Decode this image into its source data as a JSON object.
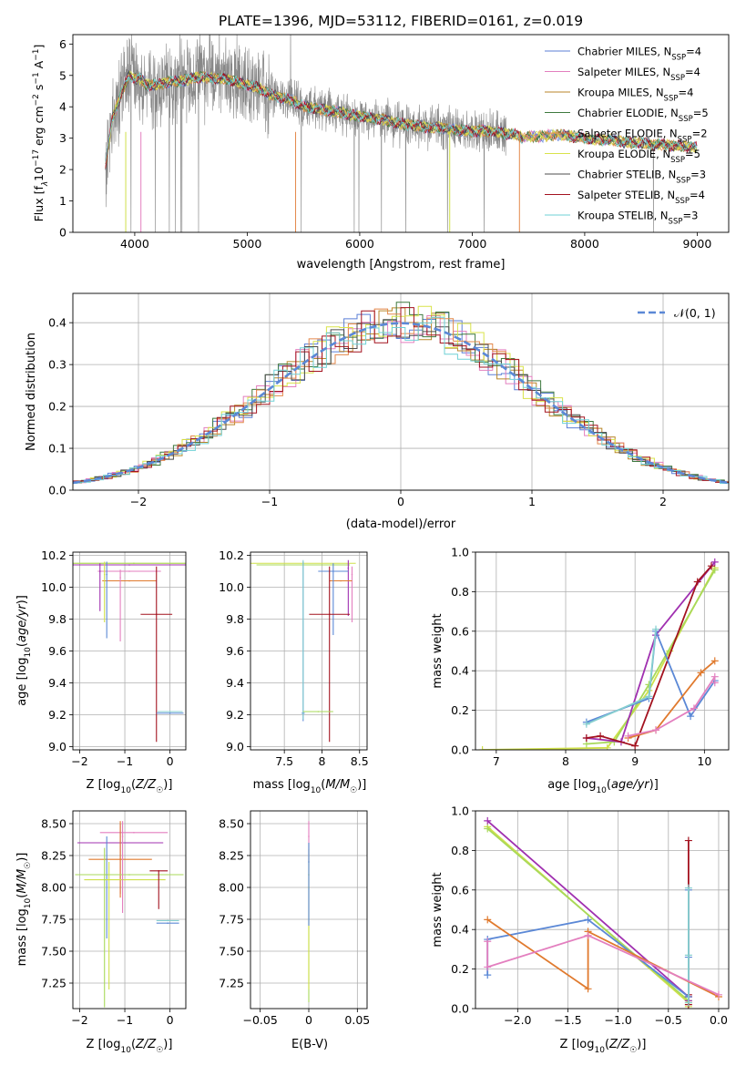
{
  "title": "PLATE=1396, MJD=53112, FIBERID=0161, z=0.019",
  "colors": {
    "series": [
      "#5b7fd6",
      "#e37fbf",
      "#b8862a",
      "#3f7a3f",
      "#e3884b",
      "#d9e34a",
      "#4d4d4d",
      "#a3121f",
      "#6fd1d6"
    ],
    "data": "#888888",
    "blue": "#5b88d6",
    "orange": "#e07a2e",
    "pink": "#e37fbf",
    "green": "#a8d95a",
    "olive": "#cfe04a",
    "purple": "#a030b0",
    "red": "#a3121f",
    "teal": "#86cfcf",
    "grid": "#b0b0b0"
  },
  "chart_data": [
    {
      "id": "spectrum",
      "type": "line",
      "title": "PLATE=1396, MJD=53112, FIBERID=0161, z=0.019",
      "xlabel": "wavelength [Angstrom, rest frame]",
      "ylabel_parts": [
        "Flux [f",
        "λ",
        "10",
        "−17",
        " erg cm",
        "−2",
        " s",
        "−1",
        " A",
        "−1",
        "]"
      ],
      "xlim": [
        3450,
        9280
      ],
      "ylim": [
        0,
        6.3
      ],
      "xticks": [
        4000,
        5000,
        6000,
        7000,
        8000,
        9000
      ],
      "yticks": [
        0,
        1,
        2,
        3,
        4,
        5,
        6
      ],
      "grid": false,
      "legend_position": "upper-right",
      "legend": [
        {
          "label": "Chabrier MILES, N",
          "sub": "SSP",
          "tail": "=4"
        },
        {
          "label": "Salpeter MILES, N",
          "sub": "SSP",
          "tail": "=4"
        },
        {
          "label": "Kroupa MILES, N",
          "sub": "SSP",
          "tail": "=4"
        },
        {
          "label": "Chabrier ELODIE, N",
          "sub": "SSP",
          "tail": "=5"
        },
        {
          "label": "Salpeter ELODIE, N",
          "sub": "SSP",
          "tail": "=2"
        },
        {
          "label": "Kroupa ELODIE, N",
          "sub": "SSP",
          "tail": "=5"
        },
        {
          "label": "Chabrier STELIB, N",
          "sub": "SSP",
          "tail": "=3"
        },
        {
          "label": "Salpeter STELIB, N",
          "sub": "SSP",
          "tail": "=4"
        },
        {
          "label": "Kroupa STELIB, N",
          "sub": "SSP",
          "tail": "=3"
        }
      ],
      "continuum": {
        "x": [
          3740,
          3800,
          3900,
          3950,
          4000,
          4050,
          4100,
          4200,
          4300,
          4400,
          4500,
          4600,
          4700,
          4800,
          4900,
          5000,
          5100,
          5200,
          5300,
          5400,
          5500,
          5600,
          5700,
          5800,
          5900,
          6000,
          6100,
          6200,
          6300,
          6400,
          6500,
          6600,
          6700,
          6800,
          6900,
          7000,
          7100,
          7200,
          7300,
          7400,
          7450,
          7500,
          7600,
          7700,
          7800,
          7900,
          8000,
          8100,
          8200,
          8300,
          8400,
          8500,
          8600,
          8700,
          8800,
          8900,
          9000
        ],
        "y": [
          2.1,
          3.6,
          4.6,
          5.0,
          4.9,
          4.9,
          4.7,
          4.7,
          4.8,
          4.8,
          4.9,
          4.95,
          4.9,
          4.9,
          4.8,
          4.7,
          4.6,
          4.4,
          4.3,
          4.2,
          4.0,
          3.95,
          3.9,
          3.85,
          3.75,
          3.7,
          3.65,
          3.6,
          3.5,
          3.45,
          3.4,
          3.35,
          3.35,
          3.3,
          3.25,
          3.2,
          3.25,
          3.2,
          3.15,
          3.1,
          3.0,
          3.05,
          3.05,
          3.1,
          3.1,
          3.05,
          3.0,
          2.95,
          2.95,
          2.9,
          2.85,
          2.85,
          2.8,
          2.8,
          2.75,
          2.75,
          2.7
        ]
      }
    },
    {
      "id": "residuals",
      "type": "line",
      "xlabel": "(data-model)/error",
      "ylabel": "Normed distribution",
      "xlim": [
        -2.5,
        2.5
      ],
      "ylim": [
        0,
        0.47
      ],
      "xticks": [
        -2,
        -1,
        0,
        1,
        2
      ],
      "yticks": [
        0.0,
        0.1,
        0.2,
        0.3,
        0.4
      ],
      "grid": true,
      "legend_position": "upper-right",
      "series": [
        {
          "name": "N(0,1)",
          "function": "gaussian",
          "mu": 0,
          "sigma": 1
        }
      ],
      "bin_width": 0.1
    },
    {
      "id": "age-vs-Z",
      "type": "scatter",
      "xlabel": "Z [log10(Z/Z☉)]",
      "ylabel": "age [log10(age/yr)]",
      "xlim": [
        -2.15,
        0.35
      ],
      "ylim": [
        8.98,
        10.22
      ],
      "xticks": [
        -2,
        -1,
        0
      ],
      "yticks": [
        9.0,
        9.2,
        9.4,
        9.6,
        9.8,
        10.0,
        10.2
      ],
      "grid": true,
      "points": [
        {
          "x": -0.8,
          "y": 10.15,
          "xerr": 1.45,
          "yerr": [
            0,
            0
          ],
          "c": "olive"
        },
        {
          "x": -0.8,
          "y": 10.15,
          "xerr": 1.35,
          "yerr": [
            0,
            0
          ],
          "c": "green"
        },
        {
          "x": -0.9,
          "y": 10.14,
          "xerr": 1.28,
          "yerr": [
            0,
            0
          ],
          "c": "purple"
        },
        {
          "x": -0.9,
          "y": 10.1,
          "xerr": 0.7,
          "yerr": [
            0,
            0
          ],
          "c": "pink"
        },
        {
          "x": -0.9,
          "y": 10.04,
          "xerr": 0.6,
          "yerr": [
            0,
            0
          ],
          "c": "orange"
        },
        {
          "x": -1.55,
          "y": 10.1,
          "xerr": 0.0,
          "yerr": [
            0.25,
            0.05
          ],
          "c": "purple"
        },
        {
          "x": -1.45,
          "y": 10.08,
          "xerr": 0.0,
          "yerr": [
            0.3,
            0.08
          ],
          "c": "olive"
        },
        {
          "x": -1.4,
          "y": 10.08,
          "xerr": 0.0,
          "yerr": [
            0.4,
            0.08
          ],
          "c": "blue"
        },
        {
          "x": -1.1,
          "y": 10.06,
          "xerr": 0.0,
          "yerr": [
            0.4,
            0.05
          ],
          "c": "pink"
        },
        {
          "x": -0.3,
          "y": 9.83,
          "xerr": 0.35,
          "yerr": [
            0.8,
            0.3
          ],
          "c": "red"
        },
        {
          "x": 0.0,
          "y": 9.21,
          "xerr": 0.3,
          "yerr": [
            0,
            0
          ],
          "c": "blue"
        },
        {
          "x": 0.0,
          "y": 9.22,
          "xerr": 0.28,
          "yerr": [
            0,
            0
          ],
          "c": "teal"
        }
      ]
    },
    {
      "id": "age-vs-mass",
      "type": "scatter",
      "xlabel": "mass [log10(M/M☉)]",
      "ylabel": "",
      "xlim": [
        7.05,
        8.6
      ],
      "ylim": [
        8.98,
        10.22
      ],
      "xticks": [
        7.5,
        8.0,
        8.5
      ],
      "yticks": [
        9.0,
        9.2,
        9.4,
        9.6,
        9.8,
        10.0,
        10.2
      ],
      "grid": true,
      "points": [
        {
          "x": 7.75,
          "y": 10.15,
          "xerr": 0.7,
          "yerr": [
            0,
            0
          ],
          "c": "olive"
        },
        {
          "x": 7.75,
          "y": 10.14,
          "xerr": 0.62,
          "yerr": [
            0,
            0
          ],
          "c": "green"
        },
        {
          "x": 8.35,
          "y": 10.12,
          "xerr": 0.0,
          "yerr": [
            0.3,
            0.05
          ],
          "c": "purple"
        },
        {
          "x": 8.4,
          "y": 10.08,
          "xerr": 0.0,
          "yerr": [
            0.3,
            0.05
          ],
          "c": "pink"
        },
        {
          "x": 8.25,
          "y": 10.04,
          "xerr": 0.15,
          "yerr": [
            0,
            0
          ],
          "c": "orange"
        },
        {
          "x": 8.15,
          "y": 10.1,
          "xerr": 0.2,
          "yerr": [
            0.4,
            0.05
          ],
          "c": "blue"
        },
        {
          "x": 8.1,
          "y": 9.83,
          "xerr": 0.27,
          "yerr": [
            0.8,
            0.3
          ],
          "c": "red"
        },
        {
          "x": 7.75,
          "y": 9.21,
          "xerr": 0.02,
          "yerr": [
            0.05,
            0.95
          ],
          "c": "blue"
        },
        {
          "x": 7.75,
          "y": 9.22,
          "xerr": 0.0,
          "yerr": [
            0.05,
            0.95
          ],
          "c": "teal"
        },
        {
          "x": 7.95,
          "y": 9.22,
          "xerr": 0.2,
          "yerr": [
            0,
            0
          ],
          "c": "green"
        }
      ]
    },
    {
      "id": "massweight-vs-age",
      "type": "line",
      "xlabel": "age [log10(age/yr)]",
      "ylabel": "mass weight",
      "xlim": [
        6.7,
        10.35
      ],
      "ylim": [
        0,
        1.0
      ],
      "xticks": [
        7,
        8,
        9,
        10
      ],
      "yticks": [
        0.0,
        0.2,
        0.4,
        0.6,
        0.8,
        1.0
      ],
      "grid": true,
      "series": [
        {
          "c": "olive",
          "x": [
            6.8,
            8.6,
            9.2,
            9.5,
            10.15
          ],
          "y": [
            0.0,
            0.01,
            0.3,
            0.5,
            0.92
          ]
        },
        {
          "c": "green",
          "x": [
            8.3,
            8.7,
            9.2,
            10.15
          ],
          "y": [
            0.03,
            0.04,
            0.33,
            0.91
          ]
        },
        {
          "c": "purple",
          "x": [
            8.3,
            8.8,
            9.3,
            10.15
          ],
          "y": [
            0.06,
            0.04,
            0.58,
            0.95
          ]
        },
        {
          "c": "red",
          "x": [
            8.3,
            8.5,
            9.0,
            9.9,
            10.1
          ],
          "y": [
            0.06,
            0.07,
            0.02,
            0.85,
            0.93
          ]
        },
        {
          "c": "blue",
          "x": [
            8.3,
            9.2,
            9.3,
            9.8,
            10.15
          ],
          "y": [
            0.14,
            0.26,
            0.6,
            0.17,
            0.35
          ]
        },
        {
          "c": "teal",
          "x": [
            8.3,
            9.2,
            9.3
          ],
          "y": [
            0.13,
            0.27,
            0.61
          ]
        },
        {
          "c": "orange",
          "x": [
            8.9,
            9.3,
            9.95,
            10.15
          ],
          "y": [
            0.06,
            0.1,
            0.39,
            0.45
          ]
        },
        {
          "c": "pink",
          "x": [
            8.9,
            9.3,
            9.85,
            10.15
          ],
          "y": [
            0.07,
            0.1,
            0.21,
            0.37
          ]
        },
        {
          "c": "pink",
          "x": [
            10.15
          ],
          "y": [
            0.34
          ]
        }
      ]
    },
    {
      "id": "mass-vs-Z",
      "type": "scatter",
      "xlabel": "Z [log10(Z/Z☉)]",
      "ylabel": "mass [log10(M/M☉)]",
      "xlim": [
        -2.15,
        0.35
      ],
      "ylim": [
        7.05,
        8.6
      ],
      "xticks": [
        -2,
        -1,
        0
      ],
      "yticks": [
        7.25,
        7.5,
        7.75,
        8.0,
        8.25,
        8.5
      ],
      "grid": true,
      "points": [
        {
          "x": -0.8,
          "y": 8.43,
          "xerr": 0.75,
          "yerr": [
            0,
            0
          ],
          "c": "pink"
        },
        {
          "x": -1.1,
          "y": 8.35,
          "xerr": 0.95,
          "yerr": [
            0.4,
            0.15
          ],
          "c": "purple"
        },
        {
          "x": -1.1,
          "y": 8.22,
          "xerr": 0.7,
          "yerr": [
            0.3,
            0.3
          ],
          "c": "orange"
        },
        {
          "x": -1.4,
          "y": 8.1,
          "xerr": 0.05,
          "yerr": [
            0.5,
            0.3
          ],
          "c": "blue"
        },
        {
          "x": -0.9,
          "y": 8.1,
          "xerr": 1.2,
          "yerr": [
            0,
            0
          ],
          "c": "green"
        },
        {
          "x": -1.0,
          "y": 8.06,
          "xerr": 0.9,
          "yerr": [
            0,
            0
          ],
          "c": "olive"
        },
        {
          "x": -1.45,
          "y": 8.06,
          "xerr": 0.0,
          "yerr": [
            1.0,
            0.25
          ],
          "c": "green"
        },
        {
          "x": -1.35,
          "y": 8.0,
          "xerr": 0.0,
          "yerr": [
            0.8,
            0.2
          ],
          "c": "olive"
        },
        {
          "x": -1.05,
          "y": 8.4,
          "xerr": 0.0,
          "yerr": [
            0.6,
            0.12
          ],
          "c": "pink"
        },
        {
          "x": -0.25,
          "y": 8.13,
          "xerr": 0.2,
          "yerr": [
            0.3,
            0
          ],
          "c": "red"
        },
        {
          "x": -0.05,
          "y": 7.72,
          "xerr": 0.25,
          "yerr": [
            0,
            0
          ],
          "c": "blue"
        },
        {
          "x": -0.05,
          "y": 7.74,
          "xerr": 0.25,
          "yerr": [
            0,
            0
          ],
          "c": "teal"
        }
      ]
    },
    {
      "id": "mass-vs-ebv",
      "type": "scatter",
      "xlabel": "E(B-V)",
      "ylabel": "",
      "xlim": [
        -0.06,
        0.06
      ],
      "ylim": [
        7.05,
        8.6
      ],
      "xticks": [
        -0.05,
        0.0,
        0.05
      ],
      "yticks": [
        7.25,
        7.5,
        7.75,
        8.0,
        8.25,
        8.5
      ],
      "grid": true,
      "points": [
        {
          "x": 0.0,
          "y": 8.4,
          "xerr": 0,
          "yerr": [
            0.2,
            0.12
          ],
          "c": "pink"
        },
        {
          "x": 0.0,
          "y": 8.1,
          "xerr": 0,
          "yerr": [
            1.0,
            0.25
          ],
          "c": "green"
        },
        {
          "x": 0.0,
          "y": 8.0,
          "xerr": 0,
          "yerr": [
            0.8,
            0.3
          ],
          "c": "olive"
        },
        {
          "x": 0.0,
          "y": 8.2,
          "xerr": 0,
          "yerr": [
            0.5,
            0.15
          ],
          "c": "blue"
        }
      ]
    },
    {
      "id": "massweight-vs-Z",
      "type": "line",
      "xlabel": "Z [log10(Z/Z☉)]",
      "ylabel": "mass weight",
      "xlim": [
        -2.42,
        0.1
      ],
      "ylim": [
        0,
        1.0
      ],
      "xticks": [
        -2.0,
        -1.5,
        -1.0,
        -0.5,
        0.0
      ],
      "yticks": [
        0.0,
        0.2,
        0.4,
        0.6,
        0.8,
        1.0
      ],
      "grid": true,
      "series": [
        {
          "c": "olive",
          "x": [
            -2.3,
            -0.3,
            -0.3
          ],
          "y": [
            0.92,
            0.03,
            0.01
          ]
        },
        {
          "c": "green",
          "x": [
            -2.3,
            -0.3
          ],
          "y": [
            0.91,
            0.04
          ]
        },
        {
          "c": "purple",
          "x": [
            -2.3,
            -0.3,
            -0.3
          ],
          "y": [
            0.95,
            0.06,
            0.04
          ]
        },
        {
          "c": "red",
          "x": [
            -0.3,
            -0.3,
            -0.3,
            -0.3
          ],
          "y": [
            0.85,
            0.06,
            0.02,
            0.07
          ]
        },
        {
          "c": "blue",
          "x": [
            -2.3,
            -2.3,
            -1.3,
            -0.3,
            -0.3,
            -0.3
          ],
          "y": [
            0.17,
            0.35,
            0.45,
            0.06,
            0.26,
            0.6
          ]
        },
        {
          "c": "teal",
          "x": [
            -0.3,
            -0.3,
            -0.3
          ],
          "y": [
            0.61,
            0.27,
            0.03
          ]
        },
        {
          "c": "orange",
          "x": [
            -2.3,
            -1.3,
            -1.3,
            0.0
          ],
          "y": [
            0.45,
            0.1,
            0.39,
            0.06
          ]
        },
        {
          "c": "pink",
          "x": [
            -2.3,
            -2.3,
            -1.3,
            0.0
          ],
          "y": [
            0.34,
            0.21,
            0.37,
            0.07
          ]
        }
      ]
    }
  ]
}
